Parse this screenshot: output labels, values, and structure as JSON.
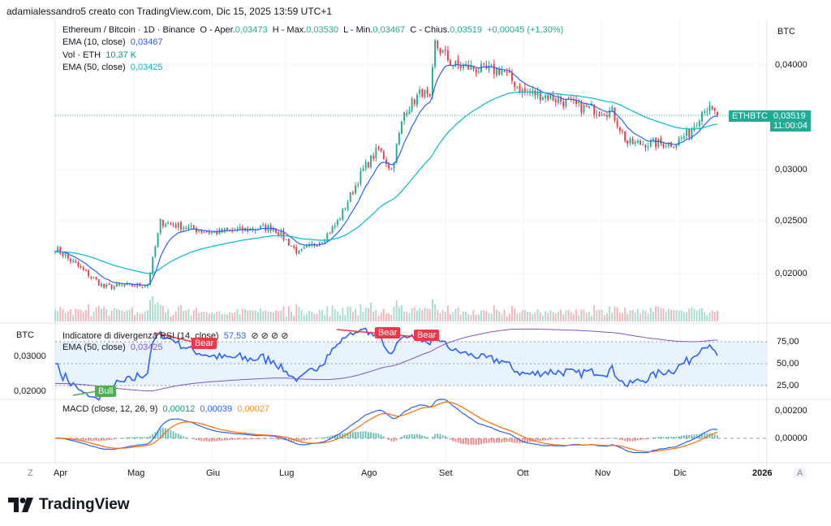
{
  "header": {
    "credit": "adamialessandro5 creato con TradingView.com, Dic 15, 2025 13:59 UTC+1"
  },
  "legend": {
    "symbol": "Ethereum / Bitcoin · 1D · Binance",
    "o_label": "O - Aper.",
    "o": "0,03473",
    "h_label": "H - Max.",
    "h": "0,03530",
    "l_label": "L - Min.",
    "l": "0,03467",
    "c_label": "C - Chius.",
    "c": "0,03519",
    "change": "+0,00045 (+1,30%)",
    "ema10_label": "EMA (10, close)",
    "ema10": "0,03467",
    "vol_label": "Vol · ETH",
    "vol": "10,37 K",
    "ema50_label": "EMA (50, close)",
    "ema50": "0,03425"
  },
  "price_axis": {
    "currency": "BTC",
    "ticks": [
      "0,04000",
      "0,03000",
      "0,02500",
      "0,02000"
    ],
    "last_symbol": "ETHBTC",
    "last_price": "0,03519",
    "countdown": "11:00:04"
  },
  "rsi_pane": {
    "currency": "BTC",
    "title": "Indicatore di divergenza RSI (14, close)",
    "value": "57,53",
    "icons": "⊘ ⊘ ⊘ ⊘",
    "ema_label": "EMA (50, close)",
    "ema_value": "0,03425",
    "left_ticks": [
      "0,03000",
      "0,02000"
    ],
    "right_ticks": [
      "75,00",
      "50,00",
      "25,00"
    ],
    "labels": {
      "bear": "Bear",
      "bull": "Bull"
    }
  },
  "macd_pane": {
    "title": "MACD (close, 12, 26, 9)",
    "hist": "0,00012",
    "macd": "0,00039",
    "signal": "0,00027",
    "ticks": [
      "0,00200",
      "0,00000"
    ]
  },
  "time_axis": {
    "labels": [
      "Apr",
      "Mag",
      "Giu",
      "Lug",
      "Ago",
      "Set",
      "Ott",
      "Nov",
      "Dic",
      "2026"
    ],
    "zoom_btn": "Z",
    "auto_btn": "A"
  },
  "footer": {
    "logo": "TradingView"
  },
  "colors": {
    "up": "#22ab94",
    "down": "#f23645",
    "ema10": "#2962ff",
    "ema50": "#00bcd4",
    "rsi": "#2962ff",
    "macd": "#2962ff",
    "signal": "#ff6d00"
  },
  "chart_data": {
    "type": "candlestick",
    "symbol": "ETHBTC",
    "timeframe": "1D",
    "ylim": [
      0.0175,
      0.0425
    ],
    "approx_close": [
      [
        "2025-04-01",
        0.0225
      ],
      [
        "2025-04-20",
        0.0188
      ],
      [
        "2025-05-07",
        0.019
      ],
      [
        "2025-05-12",
        0.025
      ],
      [
        "2025-06-01",
        0.024
      ],
      [
        "2025-06-25",
        0.0245
      ],
      [
        "2025-07-05",
        0.022
      ],
      [
        "2025-07-15",
        0.0235
      ],
      [
        "2025-07-20",
        0.025
      ],
      [
        "2025-07-30",
        0.03
      ],
      [
        "2025-08-05",
        0.032
      ],
      [
        "2025-08-10",
        0.03
      ],
      [
        "2025-08-15",
        0.0355
      ],
      [
        "2025-08-22",
        0.0375
      ],
      [
        "2025-08-25",
        0.0365
      ],
      [
        "2025-08-27",
        0.042
      ],
      [
        "2025-09-03",
        0.04
      ],
      [
        "2025-09-15",
        0.0395
      ],
      [
        "2025-09-22",
        0.0395
      ],
      [
        "2025-09-30",
        0.0375
      ],
      [
        "2025-10-10",
        0.037
      ],
      [
        "2025-10-22",
        0.036
      ],
      [
        "2025-11-04",
        0.0355
      ],
      [
        "2025-11-10",
        0.0325
      ],
      [
        "2025-11-28",
        0.0325
      ],
      [
        "2025-12-04",
        0.0335
      ],
      [
        "2025-12-10",
        0.036
      ],
      [
        "2025-12-15",
        0.03519
      ]
    ]
  }
}
